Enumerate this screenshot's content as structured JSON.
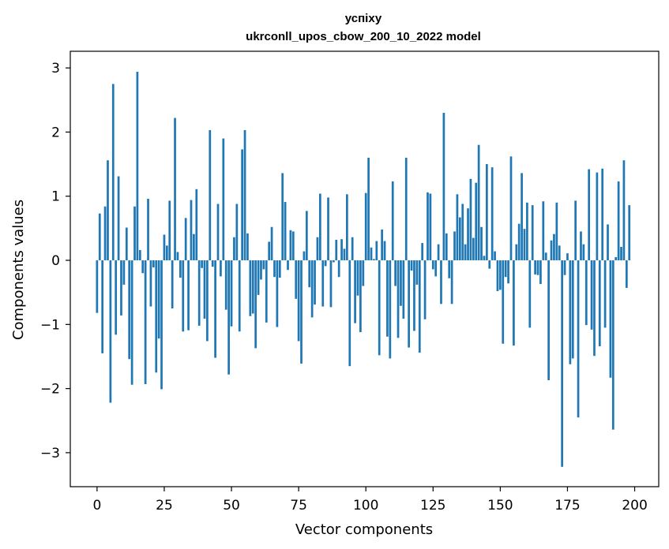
{
  "chart_data": {
    "type": "bar",
    "title": "успіху",
    "subtitle": "ukrconll_upos_cbow_200_10_2022 model",
    "xlabel": "Vector components",
    "ylabel": "Components values",
    "xlim": [
      -9.95,
      208.95
    ],
    "ylim": [
      -3.53,
      3.26
    ],
    "xticks": [
      0,
      25,
      50,
      75,
      100,
      125,
      150,
      175,
      200
    ],
    "yticks": [
      -3,
      -2,
      -1,
      0,
      1,
      2,
      3
    ],
    "ytick_labels": [
      "−3",
      "−2",
      "−1",
      "0",
      "1",
      "2",
      "3"
    ],
    "bar_color": "#1f77b4",
    "grid": false,
    "values": [
      -0.82,
      0.73,
      -1.45,
      0.84,
      1.56,
      -2.22,
      2.75,
      -1.16,
      1.31,
      -0.86,
      -0.38,
      0.51,
      -1.54,
      -1.94,
      0.84,
      2.94,
      0.16,
      -0.2,
      -1.93,
      0.96,
      -0.72,
      -0.11,
      -1.75,
      -1.22,
      -2.01,
      0.4,
      0.23,
      0.93,
      -0.75,
      2.22,
      0.13,
      -0.27,
      -1.11,
      0.66,
      -1.09,
      0.94,
      0.41,
      1.11,
      -1.02,
      -0.12,
      -0.91,
      -1.26,
      2.03,
      -0.1,
      -1.52,
      0.88,
      -0.25,
      1.9,
      -0.77,
      -1.78,
      -1.03,
      0.36,
      0.88,
      -1.11,
      1.73,
      2.03,
      0.42,
      -0.87,
      -0.83,
      -1.37,
      -0.54,
      -0.3,
      -0.14,
      -0.97,
      0.29,
      0.52,
      -0.26,
      -1.04,
      -0.27,
      1.36,
      0.91,
      -0.15,
      0.47,
      0.45,
      -0.6,
      -1.26,
      -1.61,
      0.14,
      0.77,
      -0.42,
      -0.89,
      -0.69,
      0.36,
      1.04,
      -0.72,
      -0.09,
      0.98,
      -0.73,
      -0.03,
      0.32,
      -0.26,
      0.33,
      0.18,
      1.03,
      -1.65,
      0.36,
      -0.98,
      -0.55,
      -1.12,
      -0.4,
      1.05,
      1.6,
      0.2,
      0.02,
      0.3,
      -1.48,
      0.48,
      0.3,
      -1.19,
      -1.53,
      1.23,
      -0.4,
      -1.21,
      -0.71,
      -0.91,
      1.6,
      -1.36,
      -0.16,
      -1.1,
      -0.38,
      -1.44,
      0.27,
      -0.92,
      1.06,
      1.04,
      -0.14,
      -0.25,
      0.25,
      -0.68,
      2.3,
      0.42,
      -0.28,
      -0.68,
      0.45,
      1.03,
      0.67,
      0.88,
      0.25,
      0.81,
      1.27,
      0.35,
      1.21,
      1.8,
      0.52,
      0.07,
      1.5,
      -0.13,
      1.45,
      0.14,
      -0.48,
      -0.46,
      -1.3,
      -0.26,
      -0.36,
      1.62,
      -1.33,
      0.25,
      0.57,
      1.36,
      0.49,
      0.9,
      -1.05,
      0.86,
      -0.22,
      -0.23,
      -0.37,
      0.92,
      0.12,
      -1.87,
      0.31,
      0.41,
      0.9,
      0.23,
      -3.22,
      -0.23,
      0.11,
      -1.62,
      -1.53,
      0.93,
      -2.45,
      0.45,
      0.25,
      -1.01,
      1.42,
      -1.08,
      -1.49,
      1.37,
      -1.34,
      1.43,
      -1.05,
      0.56,
      -1.83,
      -2.64,
      0.05,
      1.23,
      0.21,
      1.56,
      -0.43,
      0.86
    ]
  }
}
